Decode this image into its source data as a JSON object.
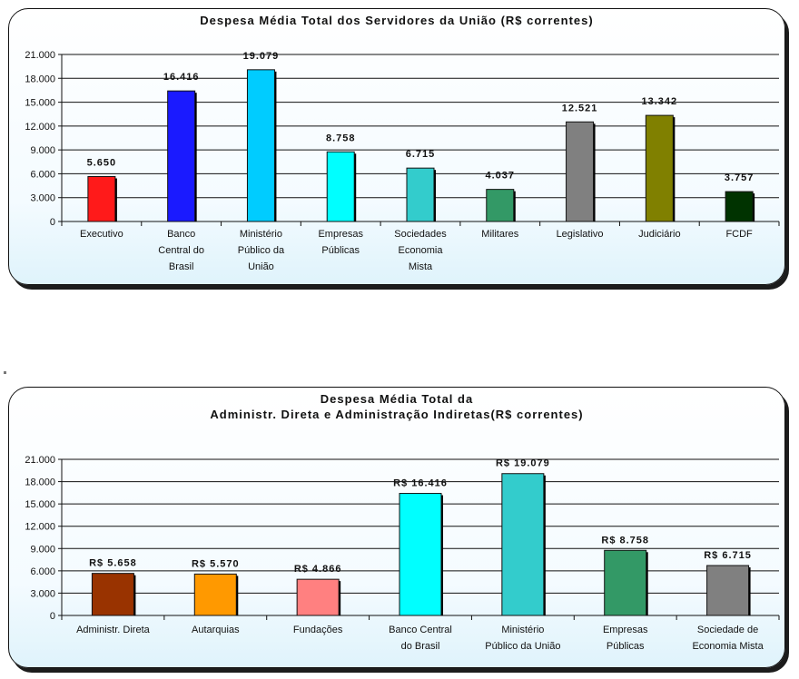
{
  "chart_data": [
    {
      "type": "bar",
      "title": "Despesa Média Total dos Servidores da União (R$ correntes)",
      "categories": [
        [
          "Executivo"
        ],
        [
          "Banco",
          "Central do",
          "Brasil"
        ],
        [
          "Ministério",
          "Público da",
          "União"
        ],
        [
          "Empresas",
          "Públicas"
        ],
        [
          "Sociedades",
          "Economia",
          "Mista"
        ],
        [
          "Militares"
        ],
        [
          "Legislativo"
        ],
        [
          "Judiciário"
        ],
        [
          "FCDF"
        ]
      ],
      "values": [
        5650,
        16416,
        19079,
        8758,
        6715,
        4037,
        12521,
        13342,
        3757
      ],
      "value_labels": [
        "5.650",
        "16.416",
        "19.079",
        "8.758",
        "6.715",
        "4.037",
        "12.521",
        "13.342",
        "3.757"
      ],
      "colors": [
        "#ff1a1a",
        "#1a1aff",
        "#00ccff",
        "#00ffff",
        "#33cccc",
        "#339966",
        "#808080",
        "#808000",
        "#003300"
      ],
      "yticks": [
        "0",
        "3.000",
        "6.000",
        "9.000",
        "12.000",
        "15.000",
        "18.000",
        "21.000"
      ],
      "ylim": [
        0,
        21000
      ],
      "grid": true,
      "xlabel": "",
      "ylabel": ""
    },
    {
      "type": "bar",
      "title": "Despesa Média Total da\nAdministr. Direta e Administração Indiretas(R$ correntes)",
      "categories": [
        [
          "Administr. Direta"
        ],
        [
          "Autarquias"
        ],
        [
          "Fundações"
        ],
        [
          "Banco Central",
          "do Brasil"
        ],
        [
          "Ministério",
          "Público da União"
        ],
        [
          "Empresas",
          "Públicas"
        ],
        [
          "Sociedade de",
          "Economia Mista"
        ]
      ],
      "values": [
        5658,
        5570,
        4866,
        16416,
        19079,
        8758,
        6715
      ],
      "value_labels": [
        "R$ 5.658",
        "R$ 5.570",
        "R$ 4.866",
        "R$ 16.416",
        "R$ 19.079",
        "R$ 8.758",
        "R$ 6.715"
      ],
      "colors": [
        "#993300",
        "#ff9900",
        "#ff8080",
        "#00ffff",
        "#33cccc",
        "#339966",
        "#808080"
      ],
      "yticks": [
        "0",
        "3.000",
        "6.000",
        "9.000",
        "12.000",
        "15.000",
        "18.000",
        "21.000"
      ],
      "ylim": [
        0,
        21000
      ],
      "grid": true,
      "xlabel": "",
      "ylabel": ""
    }
  ]
}
